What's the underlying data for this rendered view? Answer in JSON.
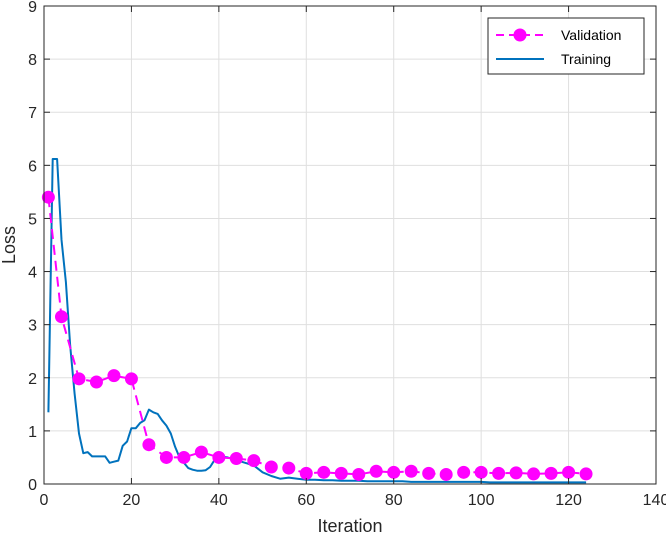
{
  "chart_data": {
    "type": "line",
    "xlabel": "Iteration",
    "ylabel": "Loss",
    "xlim": [
      0,
      140
    ],
    "ylim": [
      0,
      9
    ],
    "xticks": [
      0,
      20,
      40,
      60,
      80,
      100,
      120,
      140
    ],
    "yticks": [
      0,
      1,
      2,
      3,
      4,
      5,
      6,
      7,
      8,
      9
    ],
    "grid": true,
    "legend_position": "top-right",
    "series": [
      {
        "name": "Validation",
        "color": "#ff00ff",
        "style": "dashed-circle-markers",
        "x": [
          1,
          4,
          8,
          12,
          16,
          20,
          24,
          28,
          32,
          36,
          40,
          44,
          48,
          52,
          56,
          60,
          64,
          68,
          72,
          76,
          80,
          84,
          88,
          92,
          96,
          100,
          104,
          108,
          112,
          116,
          120,
          124
        ],
        "y": [
          5.4,
          3.15,
          1.98,
          1.92,
          2.04,
          1.98,
          0.74,
          0.5,
          0.5,
          0.6,
          0.5,
          0.48,
          0.44,
          0.32,
          0.3,
          0.2,
          0.22,
          0.2,
          0.18,
          0.24,
          0.22,
          0.24,
          0.2,
          0.18,
          0.22,
          0.22,
          0.2,
          0.21,
          0.19,
          0.2,
          0.22,
          0.19
        ]
      },
      {
        "name": "Training",
        "color": "#0072bd",
        "style": "solid",
        "x": [
          1,
          2,
          3,
          4,
          5,
          6,
          7,
          8,
          9,
          10,
          11,
          12,
          13,
          14,
          15,
          16,
          17,
          18,
          19,
          20,
          21,
          22,
          23,
          24,
          25,
          26,
          27,
          28,
          29,
          30,
          31,
          32,
          33,
          34,
          35,
          36,
          37,
          38,
          39,
          40,
          42,
          44,
          46,
          48,
          50,
          52,
          54,
          56,
          58,
          60,
          62,
          64,
          66,
          68,
          70,
          72,
          74,
          76,
          78,
          80,
          82,
          84,
          86,
          88,
          90,
          92,
          94,
          96,
          98,
          100,
          102,
          104,
          106,
          108,
          110,
          112,
          114,
          116,
          118,
          120,
          122,
          124
        ],
        "y": [
          1.35,
          6.12,
          6.12,
          4.6,
          3.8,
          2.6,
          1.7,
          0.95,
          0.58,
          0.6,
          0.52,
          0.52,
          0.52,
          0.52,
          0.4,
          0.42,
          0.44,
          0.72,
          0.8,
          1.05,
          1.05,
          1.15,
          1.2,
          1.4,
          1.35,
          1.32,
          1.2,
          1.1,
          0.95,
          0.7,
          0.5,
          0.4,
          0.3,
          0.27,
          0.25,
          0.25,
          0.26,
          0.32,
          0.45,
          0.52,
          0.5,
          0.45,
          0.4,
          0.35,
          0.22,
          0.15,
          0.1,
          0.12,
          0.1,
          0.08,
          0.08,
          0.07,
          0.07,
          0.06,
          0.06,
          0.06,
          0.05,
          0.05,
          0.05,
          0.05,
          0.05,
          0.04,
          0.04,
          0.04,
          0.04,
          0.04,
          0.04,
          0.04,
          0.04,
          0.04,
          0.03,
          0.03,
          0.03,
          0.03,
          0.03,
          0.03,
          0.03,
          0.03,
          0.03,
          0.03,
          0.03,
          0.03
        ]
      }
    ]
  }
}
